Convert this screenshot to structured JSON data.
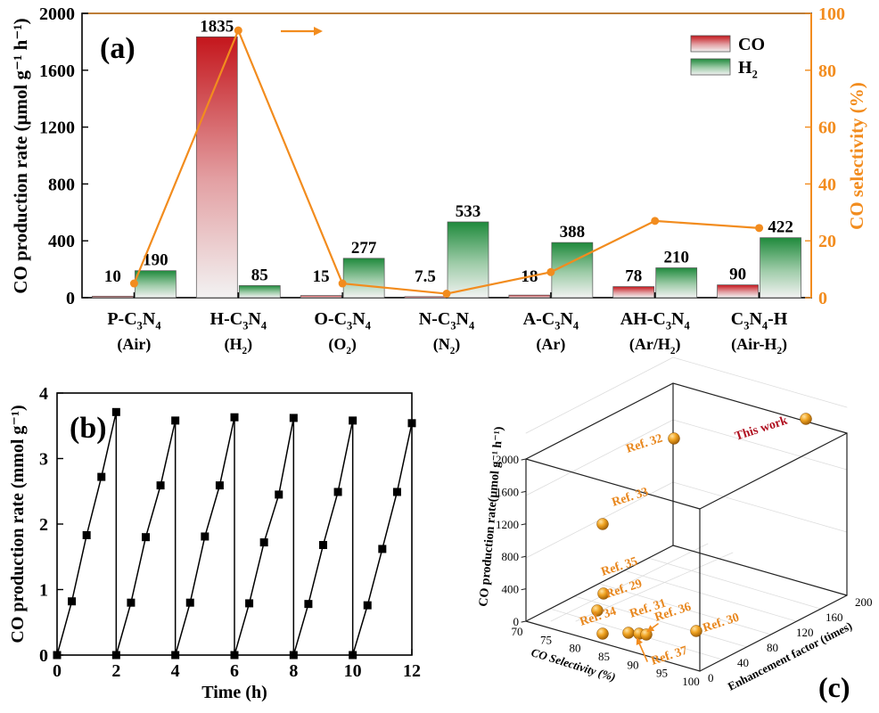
{
  "chart_data": [
    {
      "type": "bar",
      "panel_label": "(a)",
      "categories": [
        {
          "name": "P-C3N4",
          "atmo": "(Air)"
        },
        {
          "name": "H-C3N4",
          "atmo": "(H2)"
        },
        {
          "name": "O-C3N4",
          "atmo": "(O2)"
        },
        {
          "name": "N-C3N4",
          "atmo": "(N2)"
        },
        {
          "name": "A-C3N4",
          "atmo": "(Ar)"
        },
        {
          "name": "AH-C3N4",
          "atmo": "(Ar/H2)"
        },
        {
          "name": "C3N4-H",
          "atmo": "(Air-H2)"
        }
      ],
      "series": [
        {
          "name": "CO",
          "values": [
            10,
            1835,
            15,
            7.5,
            18,
            78,
            90
          ],
          "labels": [
            "10",
            "1835",
            "15",
            "7.5",
            "18",
            "78",
            "90"
          ],
          "color": "#c4161c"
        },
        {
          "name": "H2",
          "values": [
            190,
            85,
            277,
            533,
            388,
            210,
            422
          ],
          "labels": [
            "190",
            "85",
            "277",
            "533",
            "388",
            "210",
            "422"
          ],
          "color": "#1f8a3c"
        }
      ],
      "selectivity": {
        "name": "CO selectivity",
        "values": [
          5,
          94,
          5,
          1.4,
          9,
          27,
          24.5
        ],
        "color": "#f28c1e"
      },
      "ylabel": "CO production rate (μmol g⁻¹ h⁻¹)",
      "ylim": [
        0,
        2000
      ],
      "yticks": [
        "0",
        "400",
        "800",
        "1200",
        "1600",
        "2000"
      ],
      "y2label": "CO selectivity (%)",
      "y2lim": [
        0,
        100
      ],
      "y2ticks": [
        "0",
        "20",
        "40",
        "60",
        "80",
        "100"
      ],
      "legend": [
        "CO",
        "H2"
      ],
      "legend_position": "top-right"
    },
    {
      "type": "line",
      "panel_label": "(b)",
      "x": [
        0,
        0.5,
        1,
        1.5,
        2,
        2,
        2.5,
        3,
        3.5,
        4,
        4,
        4.5,
        5,
        5.5,
        6,
        6,
        6.5,
        7,
        7.5,
        8,
        8,
        8.5,
        9,
        9.5,
        10,
        10,
        10.5,
        11,
        11.5,
        12
      ],
      "y": [
        0,
        0.82,
        1.83,
        2.72,
        3.71,
        0,
        0.8,
        1.8,
        2.59,
        3.58,
        0,
        0.8,
        1.81,
        2.59,
        3.63,
        0,
        0.79,
        1.72,
        2.45,
        3.62,
        0,
        0.78,
        1.68,
        2.49,
        3.58,
        0,
        0.76,
        1.62,
        2.49,
        3.54
      ],
      "xlabel": "Time (h)",
      "ylabel": "CO production rate (mmol g⁻¹)",
      "xlim": [
        0,
        12
      ],
      "ylim": [
        0,
        4
      ],
      "xticks": [
        "0",
        "2",
        "4",
        "6",
        "8",
        "10",
        "12"
      ],
      "yticks": [
        "0",
        "1",
        "2",
        "3",
        "4"
      ]
    },
    {
      "type": "scatter",
      "panel_label": "(c)",
      "points": [
        {
          "label": "This work",
          "selectivity": 94,
          "factor": 183,
          "rate": 1835
        },
        {
          "label": "Ref. 32",
          "selectivity": 100,
          "factor": 0,
          "rate": 1700
        },
        {
          "label": "Ref. 33",
          "selectivity": 83,
          "factor": 0,
          "rate": 920
        },
        {
          "label": "Ref. 35",
          "selectivity": 83,
          "factor": 0,
          "rate": 250
        },
        {
          "label": "Ref. 29",
          "selectivity": 81,
          "factor": 0,
          "rate": 80
        },
        {
          "label": "Ref. 34",
          "selectivity": 86,
          "factor": 2,
          "rate": 30
        },
        {
          "label": "Ref. 31",
          "selectivity": 91,
          "factor": 4,
          "rate": 30
        },
        {
          "label": "Ref. 36",
          "selectivity": 92,
          "factor": 5,
          "rate": 30
        },
        {
          "label": "Ref. 37",
          "selectivity": 93,
          "factor": 6,
          "rate": 30
        },
        {
          "label": "Ref. 30",
          "selectivity": 97,
          "factor": 10,
          "rate": 30
        }
      ],
      "xlabel": "CO Selectivity (%)",
      "ylabel": "Enhancement factor (times)",
      "zlabel": "CO production rate(μmol g⁻¹ h⁻¹)",
      "xticks": [
        "70",
        "75",
        "80",
        "85",
        "90",
        "95",
        "100"
      ],
      "yticks": [
        "0",
        "40",
        "80",
        "120",
        "160",
        "200"
      ],
      "zticks": [
        "0",
        "400",
        "800",
        "1200",
        "1600",
        "2000"
      ]
    }
  ],
  "colors": {
    "co": "#c4161c",
    "h2": "#1f8a3c",
    "orange": "#f28c1e",
    "ref_label": "#e8871e",
    "this_work": "#b01020"
  }
}
